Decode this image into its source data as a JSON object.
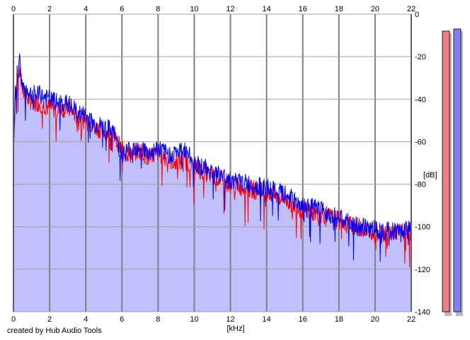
{
  "credit": "created by Hub Audio Tools",
  "chart_data": {
    "type": "line",
    "xlabel": "[kHz]",
    "ylabel": "[dB]",
    "xlim": [
      0,
      22
    ],
    "ylim": [
      -140,
      0
    ],
    "x_ticks": [
      0,
      2,
      4,
      6,
      8,
      10,
      12,
      14,
      16,
      18,
      20,
      22
    ],
    "y_ticks": [
      0,
      -20,
      -40,
      -60,
      -80,
      -100,
      -120,
      -140
    ],
    "grid": true,
    "fill_color": "#c0c0ff",
    "series": [
      {
        "color": "#ff0000",
        "x": [
          0,
          0.1,
          0.2,
          0.35,
          0.5,
          0.8,
          1,
          1.5,
          2,
          2.5,
          3,
          3.5,
          4,
          4.5,
          5,
          5.5,
          6,
          6.5,
          7,
          7.5,
          8,
          8.5,
          9,
          9.5,
          10,
          11,
          12,
          13,
          14,
          15,
          16,
          17,
          18,
          19,
          20,
          21,
          22
        ],
        "y": [
          -62,
          -40,
          -32,
          -26,
          -36,
          -40,
          -41,
          -42,
          -44,
          -45,
          -44,
          -48,
          -50,
          -53,
          -55,
          -57,
          -64,
          -66,
          -64,
          -68,
          -65,
          -68,
          -70,
          -69,
          -72,
          -76,
          -80,
          -82,
          -84,
          -87,
          -92,
          -94,
          -97,
          -100,
          -102,
          -103,
          -102
        ]
      },
      {
        "color": "#0000ff",
        "x": [
          0,
          0.1,
          0.2,
          0.35,
          0.5,
          0.8,
          1,
          1.5,
          2,
          2.5,
          3,
          3.5,
          4,
          4.5,
          5,
          5.5,
          6,
          6.5,
          7,
          7.5,
          8,
          8.5,
          9,
          9.5,
          10,
          11,
          12,
          13,
          14,
          15,
          16,
          17,
          18,
          19,
          20,
          21,
          22
        ],
        "y": [
          -60,
          -38,
          -28,
          -22,
          -34,
          -36,
          -38,
          -38,
          -40,
          -42,
          -42,
          -46,
          -48,
          -52,
          -53,
          -55,
          -66,
          -63,
          -62,
          -66,
          -63,
          -66,
          -65,
          -64,
          -70,
          -74,
          -78,
          -80,
          -82,
          -85,
          -90,
          -92,
          -96,
          -100,
          -101,
          -102,
          -101
        ]
      }
    ],
    "level_meters": [
      {
        "color": "#f08080",
        "top_db": -8,
        "bottom_db": -140
      },
      {
        "color": "#8080f0",
        "top_db": -7,
        "bottom_db": -140
      }
    ]
  }
}
